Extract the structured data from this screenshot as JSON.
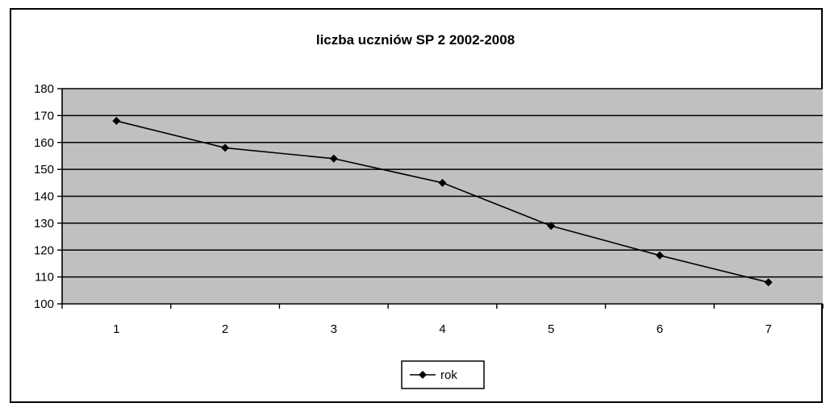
{
  "chart_data": {
    "type": "line",
    "title": "liczba uczniów SP 2 2002-2008",
    "xlabel": "",
    "ylabel": "",
    "categories": [
      "1",
      "2",
      "3",
      "4",
      "5",
      "6",
      "7"
    ],
    "series": [
      {
        "name": "rok",
        "values": [
          168,
          158,
          154,
          145,
          129,
          118,
          108
        ]
      }
    ],
    "ylim": [
      100,
      180
    ],
    "yticks": [
      100,
      110,
      120,
      130,
      140,
      150,
      160,
      170,
      180
    ],
    "grid": true,
    "legend": "bottom",
    "colors": {
      "plot_background": "#c0c0c0",
      "gridline": "#000000",
      "series_line": "#000000"
    }
  }
}
